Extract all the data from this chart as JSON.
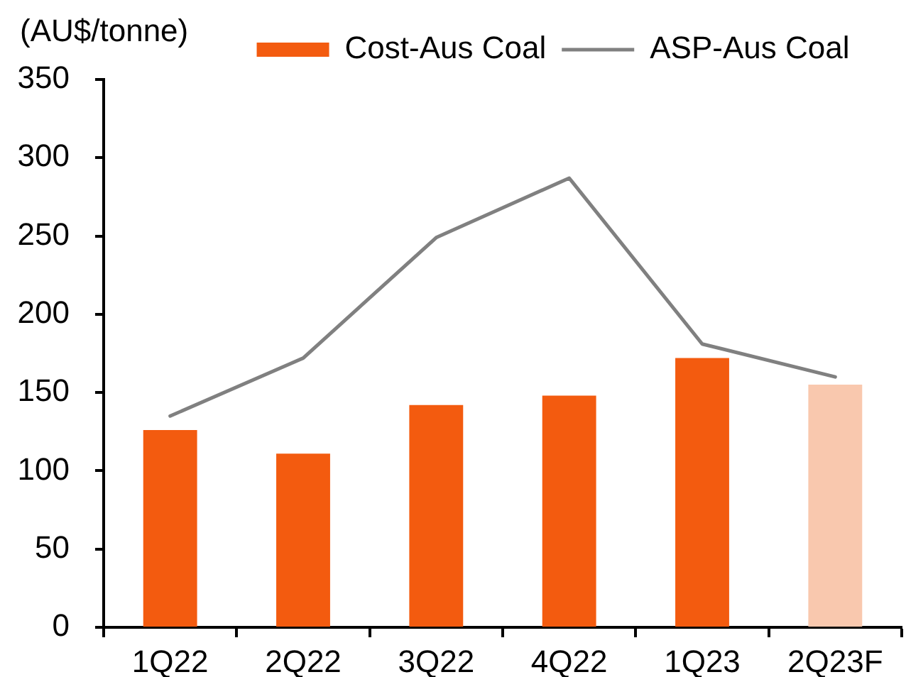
{
  "chart_data": {
    "type": "bar",
    "ylabel": "(AU$/tonne)",
    "categories": [
      "1Q22",
      "2Q22",
      "3Q22",
      "4Q22",
      "1Q23",
      "2Q23F"
    ],
    "series": [
      {
        "name": "Cost-Aus Coal",
        "color": "#f35b0f",
        "colors": [
          "#f35b0f",
          "#f35b0f",
          "#f35b0f",
          "#f35b0f",
          "#f35b0f",
          "#f9c8ae"
        ],
        "values": [
          126,
          111,
          142,
          148,
          172,
          155
        ]
      },
      {
        "name": "ASP-Aus Coal",
        "type": "line",
        "color": "#808080",
        "values": [
          135,
          172,
          249,
          287,
          181,
          160
        ]
      }
    ],
    "ylim": [
      0,
      350
    ],
    "yticks": [
      0,
      50,
      100,
      150,
      200,
      250,
      300,
      350
    ],
    "grid": false,
    "legend": "top",
    "marker": "none"
  }
}
